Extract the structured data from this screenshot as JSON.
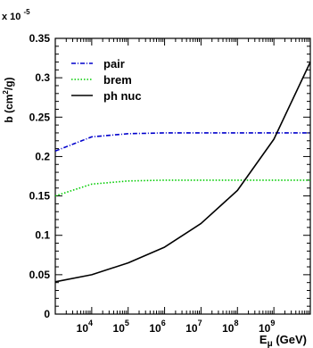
{
  "chart_data": {
    "type": "line",
    "scale_factor_label": "x 10",
    "scale_factor_exponent": "-5",
    "ylabel": "b (cm",
    "ylabel_sup": "2",
    "ylabel_tail": "/g)",
    "xlabel": "E",
    "xlabel_sub": "μ",
    "xlabel_tail": " (GeV)",
    "x_scale": "log",
    "xlim": [
      1000,
      10000000000
    ],
    "ylim": [
      0,
      0.35
    ],
    "grid": false,
    "legend_position": "top-left",
    "y_ticks": [
      {
        "value": 0,
        "label": "0"
      },
      {
        "value": 0.05,
        "label": "0.05"
      },
      {
        "value": 0.1,
        "label": "0.1"
      },
      {
        "value": 0.15,
        "label": "0.15"
      },
      {
        "value": 0.2,
        "label": "0.2"
      },
      {
        "value": 0.25,
        "label": "0.25"
      },
      {
        "value": 0.3,
        "label": "0.3"
      },
      {
        "value": 0.35,
        "label": "0.35"
      }
    ],
    "x_ticks": [
      {
        "value": 10000,
        "base": "10",
        "exp": "4"
      },
      {
        "value": 100000,
        "base": "10",
        "exp": "5"
      },
      {
        "value": 1000000,
        "base": "10",
        "exp": "6"
      },
      {
        "value": 10000000,
        "base": "10",
        "exp": "7"
      },
      {
        "value": 100000000,
        "base": "10",
        "exp": "8"
      },
      {
        "value": 1000000000,
        "base": "10",
        "exp": "9"
      }
    ],
    "series": [
      {
        "name": "pair",
        "color": "#0000cc",
        "dash": "dash-dot",
        "x": [
          1000,
          10000,
          100000,
          1000000,
          10000000,
          100000000,
          1000000000,
          10000000000
        ],
        "y": [
          0.207,
          0.225,
          0.229,
          0.23,
          0.23,
          0.23,
          0.23,
          0.23
        ]
      },
      {
        "name": "brem",
        "color": "#00cc00",
        "dash": "dotted",
        "x": [
          1000,
          10000,
          100000,
          1000000,
          10000000,
          100000000,
          1000000000,
          10000000000
        ],
        "y": [
          0.15,
          0.165,
          0.169,
          0.17,
          0.17,
          0.17,
          0.17,
          0.17
        ]
      },
      {
        "name": "ph nuc",
        "color": "#000000",
        "dash": "solid",
        "x": [
          1000,
          10000,
          100000,
          1000000,
          10000000,
          100000000,
          1000000000,
          10000000000
        ],
        "y": [
          0.041,
          0.05,
          0.065,
          0.085,
          0.115,
          0.157,
          0.222,
          0.32
        ]
      }
    ]
  }
}
